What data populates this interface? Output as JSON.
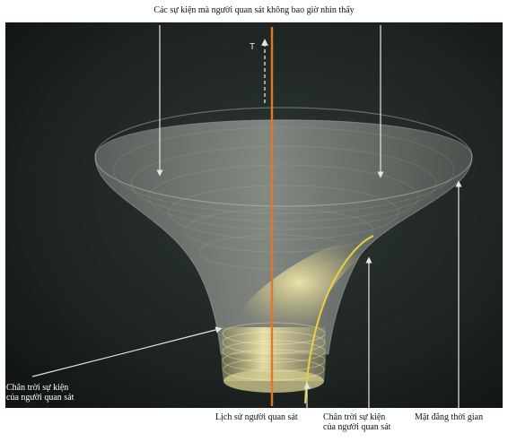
{
  "captions": {
    "top": "Các sự kiện mà người quan sát không bao giờ nhìn thấy",
    "left_line1": "Chân trời sự kiện",
    "left_line2": "của người quan sát",
    "bottom_worldline": "Lịch sử người quan sát",
    "bottom_horizon_line1": "Chân trời sự kiện",
    "bottom_horizon_line2": "của người quan sát",
    "bottom_hypersurface": "Mặt đẳng thời gian"
  },
  "axis_label": "T",
  "colors": {
    "background": "#1e2624",
    "funnel": "#c8ccc4",
    "cone_glow": "#e8d98a",
    "worldline": "#e0782a",
    "horizon_curve": "#e8d040",
    "arrows": "#e6e6e6"
  }
}
